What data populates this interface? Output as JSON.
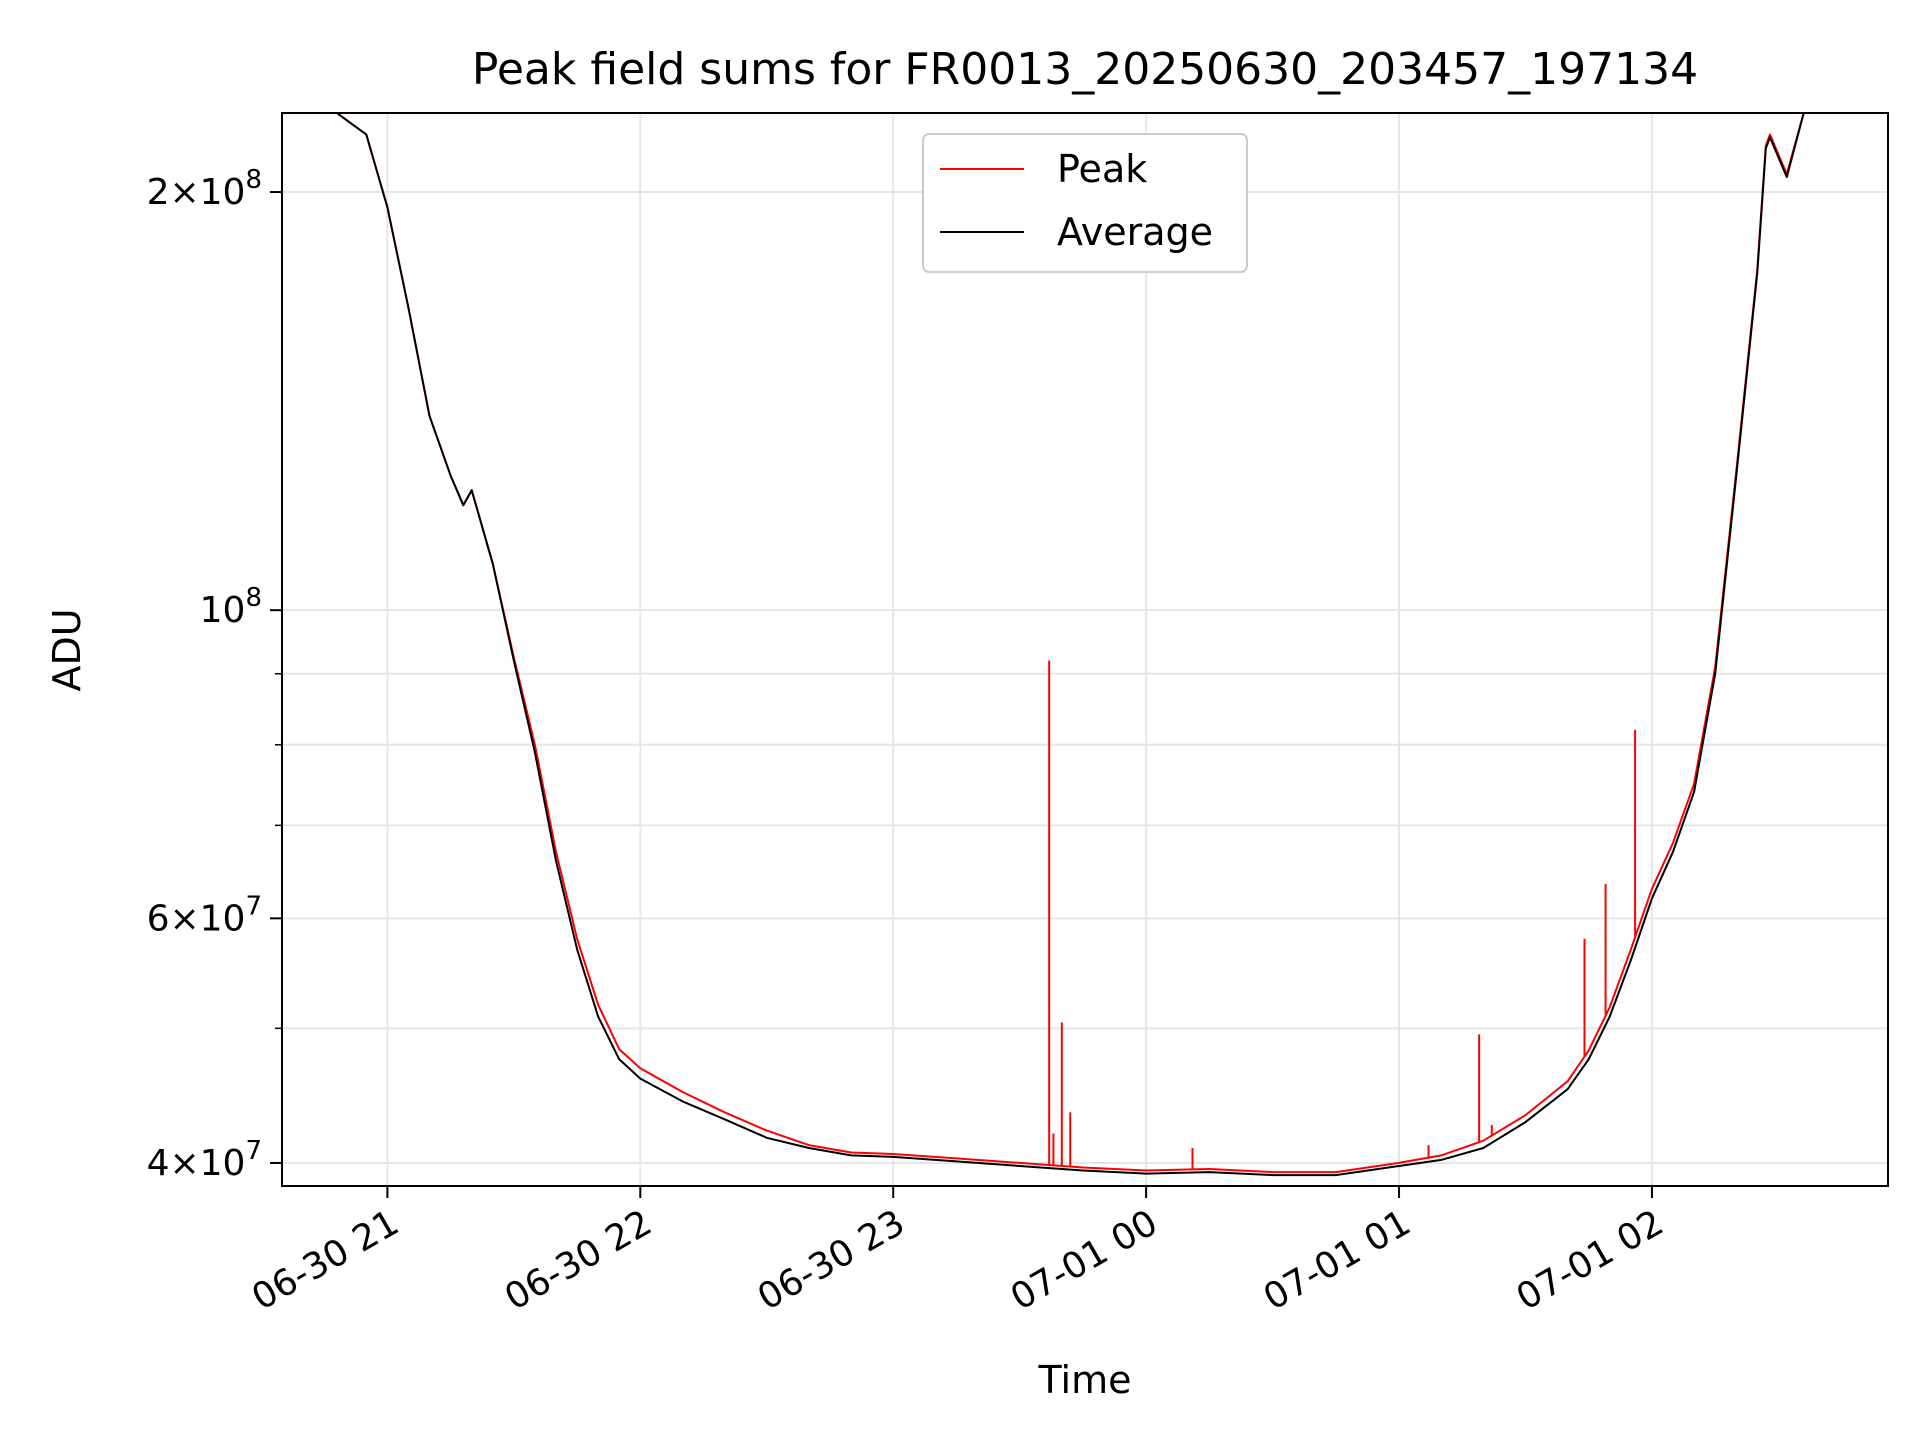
{
  "chart_data": {
    "type": "line",
    "title": "Peak field sums for FR0013_20250630_203457_197134",
    "xlabel": "Time",
    "ylabel": "ADU",
    "y_scale": "log",
    "ylim": [
      38500000,
      228000000
    ],
    "xlim": [
      "2025-06-30 20:35",
      "2025-07-01 02:56"
    ],
    "x_ticks": [
      {
        "t": "2025-06-30 21:00",
        "label": "06-30 21"
      },
      {
        "t": "2025-06-30 22:00",
        "label": "06-30 22"
      },
      {
        "t": "2025-06-30 23:00",
        "label": "06-30 23"
      },
      {
        "t": "2025-07-01 00:00",
        "label": "07-01 00"
      },
      {
        "t": "2025-07-01 01:00",
        "label": "07-01 01"
      },
      {
        "t": "2025-07-01 02:00",
        "label": "07-01 02"
      }
    ],
    "y_major_ticks": [
      {
        "v": 40000000,
        "base": "4",
        "exp": "7"
      },
      {
        "v": 60000000,
        "base": "6",
        "exp": "7"
      },
      {
        "v": 100000000,
        "base": "",
        "exp": "8"
      },
      {
        "v": 200000000,
        "base": "2",
        "exp": "8"
      }
    ],
    "y_minor_ticks": [
      50000000,
      70000000,
      80000000,
      90000000
    ],
    "grid": true,
    "legend": {
      "position": "upper-center",
      "entries": [
        {
          "name": "Peak",
          "color": "#ff0000"
        },
        {
          "name": "Average",
          "color": "#000000"
        }
      ]
    },
    "series": [
      {
        "name": "Average",
        "color": "#000000",
        "x": [
          "2025-06-30 20:35",
          "2025-06-30 20:48",
          "2025-06-30 20:55",
          "2025-06-30 21:00",
          "2025-06-30 21:05",
          "2025-06-30 21:10",
          "2025-06-30 21:15",
          "2025-06-30 21:18",
          "2025-06-30 21:20",
          "2025-06-30 21:25",
          "2025-06-30 21:30",
          "2025-06-30 21:35",
          "2025-06-30 21:40",
          "2025-06-30 21:45",
          "2025-06-30 21:50",
          "2025-06-30 21:55",
          "2025-06-30 22:00",
          "2025-06-30 22:10",
          "2025-06-30 22:20",
          "2025-06-30 22:30",
          "2025-06-30 22:40",
          "2025-06-30 22:50",
          "2025-06-30 23:00",
          "2025-06-30 23:15",
          "2025-06-30 23:30",
          "2025-06-30 23:45",
          "2025-07-01 00:00",
          "2025-07-01 00:15",
          "2025-07-01 00:30",
          "2025-07-01 00:45",
          "2025-07-01 01:00",
          "2025-07-01 01:10",
          "2025-07-01 01:20",
          "2025-07-01 01:30",
          "2025-07-01 01:40",
          "2025-07-01 01:45",
          "2025-07-01 01:50",
          "2025-07-01 01:55",
          "2025-07-01 02:00",
          "2025-07-01 02:05",
          "2025-07-01 02:10",
          "2025-07-01 02:15",
          "2025-07-01 02:20",
          "2025-07-01 02:25",
          "2025-07-01 02:27",
          "2025-07-01 02:28",
          "2025-07-01 02:32",
          "2025-07-01 02:36",
          "2025-07-01 02:56"
        ],
        "y": [
          228000000,
          228000000,
          220000000,
          195000000,
          165000000,
          138000000,
          125000000,
          119000000,
          122000000,
          108000000,
          92000000,
          79000000,
          66000000,
          57000000,
          51000000,
          47500000,
          46000000,
          44300000,
          43000000,
          41700000,
          41000000,
          40500000,
          40400000,
          40100000,
          39800000,
          39500000,
          39300000,
          39400000,
          39200000,
          39200000,
          39800000,
          40200000,
          41000000,
          42800000,
          45200000,
          47500000,
          51000000,
          56000000,
          62000000,
          67000000,
          74000000,
          90000000,
          125000000,
          175000000,
          215000000,
          219000000,
          205000000,
          228000000,
          228000000
        ]
      },
      {
        "name": "Peak",
        "color": "#ff0000",
        "x": [
          "2025-06-30 20:35",
          "2025-06-30 20:48",
          "2025-06-30 20:55",
          "2025-06-30 21:00",
          "2025-06-30 21:05",
          "2025-06-30 21:10",
          "2025-06-30 21:15",
          "2025-06-30 21:18",
          "2025-06-30 21:20",
          "2025-06-30 21:25",
          "2025-06-30 21:30",
          "2025-06-30 21:35",
          "2025-06-30 21:40",
          "2025-06-30 21:45",
          "2025-06-30 21:50",
          "2025-06-30 21:55",
          "2025-06-30 22:00",
          "2025-06-30 22:10",
          "2025-06-30 22:20",
          "2025-06-30 22:30",
          "2025-06-30 22:40",
          "2025-06-30 22:50",
          "2025-06-30 23:00",
          "2025-06-30 23:15",
          "2025-06-30 23:30",
          "2025-06-30 23:45",
          "2025-07-01 00:00",
          "2025-07-01 00:15",
          "2025-07-01 00:30",
          "2025-07-01 00:45",
          "2025-07-01 01:00",
          "2025-07-01 01:10",
          "2025-07-01 01:20",
          "2025-07-01 01:30",
          "2025-07-01 01:40",
          "2025-07-01 01:45",
          "2025-07-01 01:50",
          "2025-07-01 01:55",
          "2025-07-01 02:00",
          "2025-07-01 02:05",
          "2025-07-01 02:10",
          "2025-07-01 02:15",
          "2025-07-01 02:20",
          "2025-07-01 02:25",
          "2025-07-01 02:27",
          "2025-07-01 02:28",
          "2025-07-01 02:32",
          "2025-07-01 02:36",
          "2025-07-01 02:56"
        ],
        "y": [
          228000000,
          228000000,
          220000000,
          195000000,
          165000000,
          138000000,
          125000000,
          119000000,
          122000000,
          108000000,
          92500000,
          80000000,
          67000000,
          58000000,
          52000000,
          48300000,
          46800000,
          45000000,
          43500000,
          42200000,
          41200000,
          40700000,
          40600000,
          40300000,
          40000000,
          39700000,
          39500000,
          39600000,
          39400000,
          39400000,
          40000000,
          40500000,
          41500000,
          43300000,
          45800000,
          48200000,
          51800000,
          57000000,
          63000000,
          68000000,
          75000000,
          91000000,
          126000000,
          176000000,
          216000000,
          220000000,
          206000000,
          228000000,
          228000000
        ],
        "spikes": [
          {
            "t": "2025-06-30 23:37",
            "y": 92000000
          },
          {
            "t": "2025-06-30 23:38",
            "y": 42000000
          },
          {
            "t": "2025-06-30 23:40",
            "y": 50500000
          },
          {
            "t": "2025-06-30 23:42",
            "y": 43500000
          },
          {
            "t": "2025-07-01 00:11",
            "y": 41000000
          },
          {
            "t": "2025-07-01 01:07",
            "y": 41200000
          },
          {
            "t": "2025-07-01 01:19",
            "y": 49500000
          },
          {
            "t": "2025-07-01 01:22",
            "y": 42600000
          },
          {
            "t": "2025-07-01 01:44",
            "y": 58000000
          },
          {
            "t": "2025-07-01 01:49",
            "y": 63500000
          },
          {
            "t": "2025-07-01 01:56",
            "y": 82000000
          }
        ]
      }
    ]
  }
}
